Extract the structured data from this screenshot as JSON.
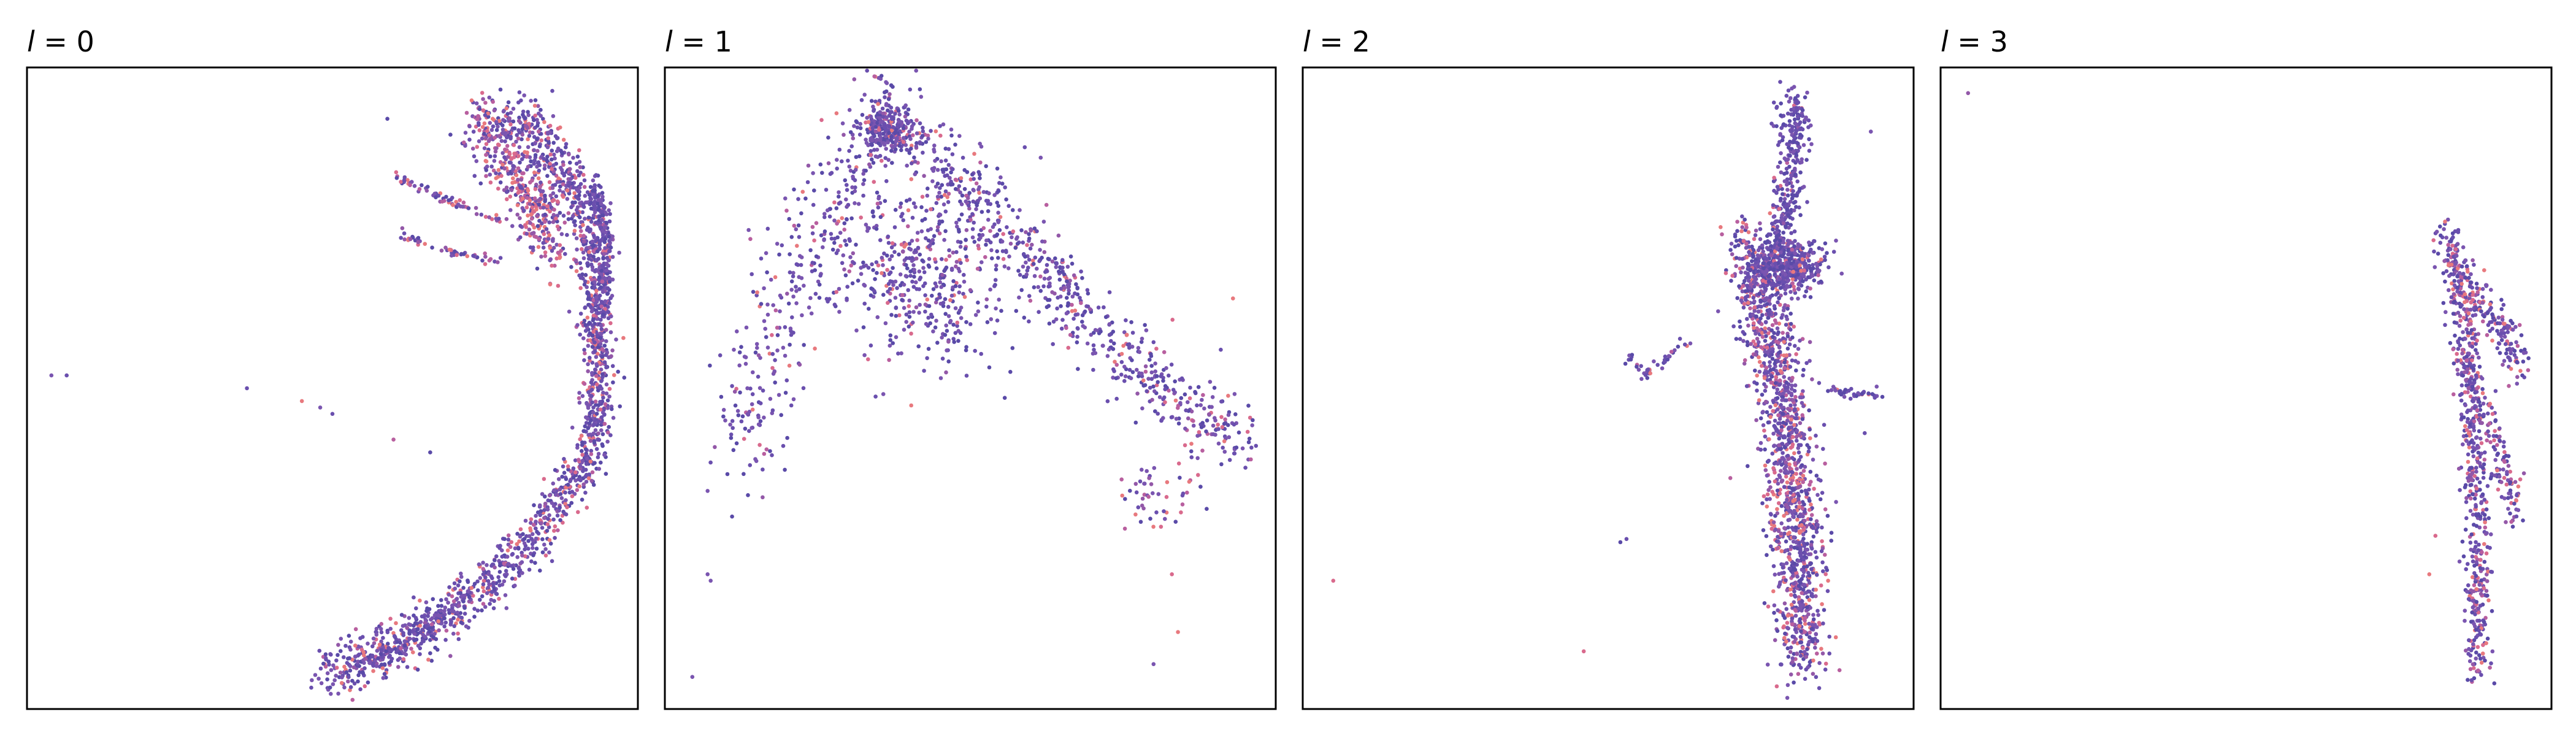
{
  "chart_data": [
    {
      "type": "scatter",
      "title_var": "l",
      "title_rest": " = 0",
      "xlim": [
        0,
        1
      ],
      "ylim": [
        0,
        1
      ],
      "grid": false,
      "axes_ticks": false,
      "point_colors": [
        "#5a4aa8",
        "#6a4fae",
        "#7a55b0",
        "#9358a8",
        "#b85f9f",
        "#d96a8d",
        "#e8797e"
      ],
      "clusters": [
        {
          "kind": "curve",
          "pts": [
            [
              0.8,
              0.93
            ],
            [
              0.88,
              0.85
            ],
            [
              0.92,
              0.74
            ],
            [
              0.93,
              0.62
            ],
            [
              0.94,
              0.5
            ],
            [
              0.92,
              0.39
            ],
            [
              0.85,
              0.29
            ],
            [
              0.75,
              0.19
            ],
            [
              0.62,
              0.1
            ],
            [
              0.48,
              0.05
            ]
          ],
          "n": 1500,
          "spread": 0.022,
          "warm": 0.25
        },
        {
          "kind": "curve",
          "pts": [
            [
              0.74,
              0.93
            ],
            [
              0.82,
              0.82
            ],
            [
              0.86,
              0.72
            ]
          ],
          "n": 450,
          "spread": 0.03,
          "warm": 0.55
        },
        {
          "kind": "curve",
          "pts": [
            [
              0.93,
              0.82
            ],
            [
              0.95,
              0.72
            ],
            [
              0.94,
              0.62
            ]
          ],
          "n": 250,
          "spread": 0.012,
          "warm": 0.1
        },
        {
          "kind": "curve",
          "pts": [
            [
              0.6,
              0.83
            ],
            [
              0.7,
              0.79
            ],
            [
              0.78,
              0.76
            ]
          ],
          "n": 60,
          "spread": 0.004,
          "warm": 0.5
        },
        {
          "kind": "curve",
          "pts": [
            [
              0.61,
              0.74
            ],
            [
              0.7,
              0.71
            ],
            [
              0.78,
              0.7
            ]
          ],
          "n": 50,
          "spread": 0.004,
          "warm": 0.4
        },
        {
          "kind": "curve",
          "pts": [
            [
              0.55,
              0.07
            ],
            [
              0.62,
              0.11
            ],
            [
              0.7,
              0.16
            ]
          ],
          "n": 120,
          "spread": 0.01,
          "warm": 0.15
        },
        {
          "kind": "points",
          "pts": [
            [
              0.04,
              0.52
            ],
            [
              0.065,
              0.52
            ],
            [
              0.36,
              0.5
            ],
            [
              0.45,
              0.48
            ],
            [
              0.48,
              0.47
            ],
            [
              0.5,
              0.46
            ],
            [
              0.6,
              0.42
            ],
            [
              0.66,
              0.4
            ],
            [
              0.59,
              0.92
            ]
          ],
          "warm": 0.3
        }
      ]
    },
    {
      "type": "scatter",
      "title_var": "l",
      "title_rest": " = 1",
      "xlim": [
        0,
        1
      ],
      "ylim": [
        0,
        1
      ],
      "grid": false,
      "axes_ticks": false,
      "point_colors": [
        "#5a4aa8",
        "#6a4fae",
        "#7a55b0",
        "#9358a8",
        "#b85f9f",
        "#d96a8d",
        "#e8797e"
      ],
      "clusters": [
        {
          "kind": "curve",
          "pts": [
            [
              0.36,
              0.94
            ],
            [
              0.48,
              0.82
            ],
            [
              0.6,
              0.7
            ],
            [
              0.72,
              0.58
            ],
            [
              0.85,
              0.47
            ],
            [
              0.95,
              0.42
            ]
          ],
          "n": 650,
          "spread": 0.03,
          "warm": 0.2
        },
        {
          "kind": "curve",
          "pts": [
            [
              0.36,
              0.94
            ],
            [
              0.26,
              0.76
            ],
            [
              0.17,
              0.56
            ],
            [
              0.12,
              0.4
            ]
          ],
          "n": 320,
          "spread": 0.05,
          "warm": 0.15
        },
        {
          "kind": "blob",
          "cx": 0.36,
          "cy": 0.9,
          "rx": 0.04,
          "ry": 0.04,
          "n": 220,
          "warm": 0.15
        },
        {
          "kind": "blob",
          "cx": 0.42,
          "cy": 0.68,
          "rx": 0.16,
          "ry": 0.14,
          "n": 500,
          "warm": 0.2
        },
        {
          "kind": "blob",
          "cx": 0.8,
          "cy": 0.33,
          "rx": 0.08,
          "ry": 0.05,
          "n": 50,
          "warm": 0.45
        },
        {
          "kind": "points",
          "pts": [
            [
              0.07,
              0.34
            ],
            [
              0.16,
              0.33
            ],
            [
              0.11,
              0.3
            ],
            [
              0.07,
              0.21
            ],
            [
              0.075,
              0.2
            ],
            [
              0.045,
              0.05
            ],
            [
              0.8,
              0.07
            ],
            [
              0.84,
              0.12
            ],
            [
              0.83,
              0.21
            ],
            [
              0.93,
              0.64
            ],
            [
              0.91,
              0.56
            ]
          ],
          "warm": 0.3
        }
      ]
    },
    {
      "type": "scatter",
      "title_var": "l",
      "title_rest": " = 2",
      "xlim": [
        0,
        1
      ],
      "ylim": [
        0,
        1
      ],
      "grid": false,
      "axes_ticks": false,
      "point_colors": [
        "#5a4aa8",
        "#6a4fae",
        "#7a55b0",
        "#9358a8",
        "#b85f9f",
        "#d96a8d",
        "#e8797e"
      ],
      "clusters": [
        {
          "kind": "curve",
          "pts": [
            [
              0.73,
              0.72
            ],
            [
              0.77,
              0.56
            ],
            [
              0.8,
              0.4
            ],
            [
              0.81,
              0.24
            ],
            [
              0.82,
              0.08
            ]
          ],
          "n": 1400,
          "spread": 0.035,
          "warm": 0.35
        },
        {
          "kind": "curve",
          "pts": [
            [
              0.81,
              0.95
            ],
            [
              0.8,
              0.86
            ],
            [
              0.79,
              0.77
            ],
            [
              0.78,
              0.72
            ]
          ],
          "n": 300,
          "spread": 0.02,
          "warm": 0.1
        },
        {
          "kind": "blob",
          "cx": 0.79,
          "cy": 0.69,
          "rx": 0.06,
          "ry": 0.04,
          "n": 450,
          "warm": 0.15
        },
        {
          "kind": "curve",
          "pts": [
            [
              0.53,
              0.55
            ],
            [
              0.56,
              0.52
            ],
            [
              0.6,
              0.55
            ],
            [
              0.63,
              0.57
            ]
          ],
          "n": 40,
          "spread": 0.006,
          "warm": 0.1
        },
        {
          "kind": "curve",
          "pts": [
            [
              0.86,
              0.5
            ],
            [
              0.9,
              0.49
            ],
            [
              0.95,
              0.49
            ]
          ],
          "n": 40,
          "spread": 0.004,
          "warm": 0.15
        },
        {
          "kind": "points",
          "pts": [
            [
              0.52,
              0.26
            ],
            [
              0.53,
              0.265
            ],
            [
              0.46,
              0.09
            ],
            [
              0.05,
              0.2
            ],
            [
              0.7,
              0.36
            ],
            [
              0.92,
              0.43
            ],
            [
              0.68,
              0.62
            ],
            [
              0.93,
              0.9
            ],
            [
              0.86,
              0.2
            ]
          ],
          "warm": 0.55
        }
      ]
    },
    {
      "type": "scatter",
      "title_var": "l",
      "title_rest": " = 3",
      "xlim": [
        0,
        1
      ],
      "ylim": [
        0,
        1
      ],
      "grid": false,
      "axes_ticks": false,
      "point_colors": [
        "#5a4aa8",
        "#6a4fae",
        "#7a55b0",
        "#9358a8",
        "#b85f9f",
        "#d96a8d",
        "#e8797e"
      ],
      "clusters": [
        {
          "kind": "curve",
          "pts": [
            [
              0.83,
              0.73
            ],
            [
              0.86,
              0.6
            ],
            [
              0.87,
              0.46
            ],
            [
              0.88,
              0.32
            ],
            [
              0.88,
              0.18
            ],
            [
              0.88,
              0.06
            ]
          ],
          "n": 550,
          "spread": 0.018,
          "warm": 0.3
        },
        {
          "kind": "curve",
          "pts": [
            [
              0.83,
              0.73
            ],
            [
              0.88,
              0.64
            ],
            [
              0.93,
              0.58
            ],
            [
              0.95,
              0.52
            ]
          ],
          "n": 200,
          "spread": 0.018,
          "warm": 0.35
        },
        {
          "kind": "curve",
          "pts": [
            [
              0.85,
              0.55
            ],
            [
              0.9,
              0.45
            ],
            [
              0.93,
              0.35
            ],
            [
              0.94,
              0.3
            ]
          ],
          "n": 150,
          "spread": 0.015,
          "warm": 0.4
        },
        {
          "kind": "points",
          "pts": [
            [
              0.045,
              0.96
            ],
            [
              0.8,
              0.21
            ],
            [
              0.81,
              0.27
            ]
          ],
          "warm": 0.8
        }
      ]
    }
  ]
}
